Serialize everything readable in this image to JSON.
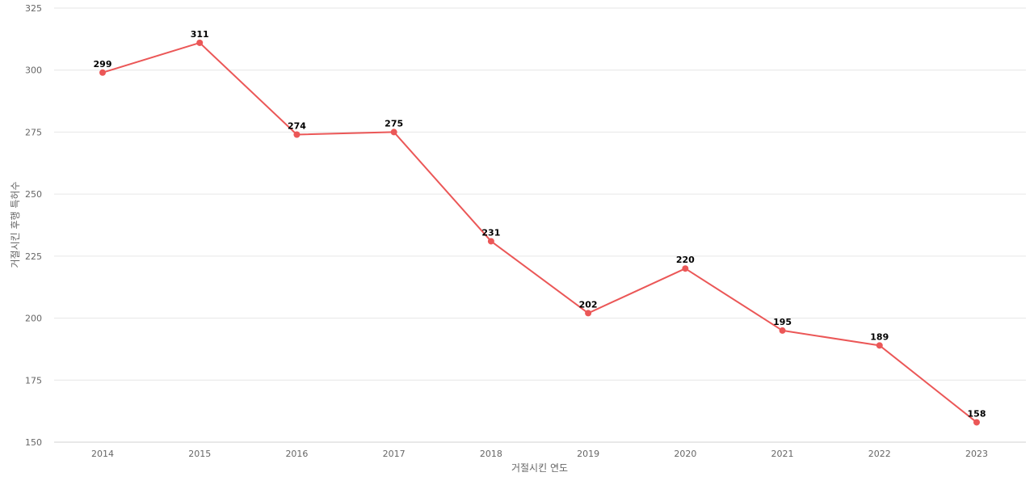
{
  "chart_data": {
    "type": "line",
    "title": "",
    "xlabel": "거절시킨 연도",
    "ylabel": "거절시킨 후행 특허수",
    "categories": [
      "2014",
      "2015",
      "2016",
      "2017",
      "2018",
      "2019",
      "2020",
      "2021",
      "2022",
      "2023"
    ],
    "series": [
      {
        "values": [
          299,
          311,
          274,
          275,
          231,
          202,
          220,
          195,
          189,
          158
        ],
        "color": "#eb5757"
      }
    ],
    "ylim": [
      150,
      325
    ],
    "yticks": [
      150,
      175,
      200,
      225,
      250,
      275,
      300,
      325
    ],
    "grid": true,
    "legend": "none",
    "data_labels": true
  }
}
